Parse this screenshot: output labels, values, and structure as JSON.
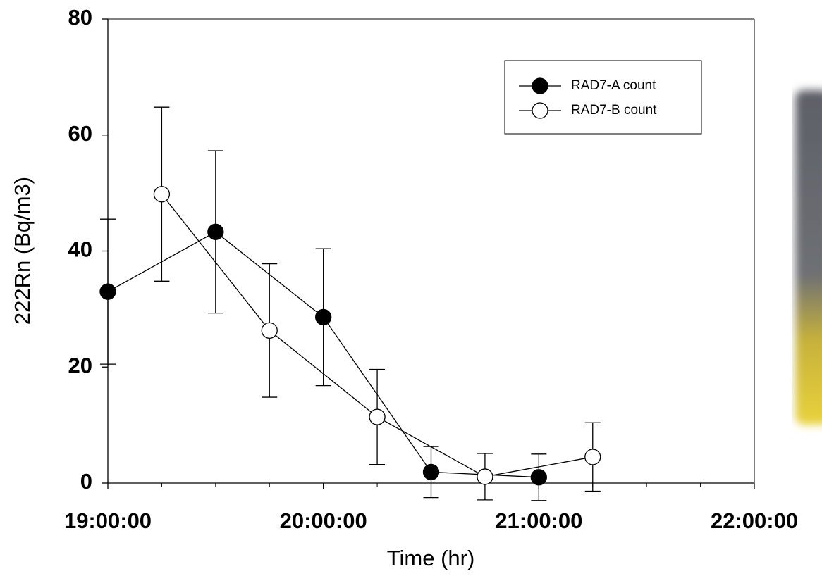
{
  "chart_data": {
    "type": "line",
    "x_label": "Time (hr)",
    "y_label": "222Rn (Bq/m3)",
    "xlim": [
      "19:00:00",
      "22:00:00"
    ],
    "xticks": [
      "19:00:00",
      "20:00:00",
      "21:00:00",
      "22:00:00"
    ],
    "ylim": [
      0,
      80
    ],
    "yticks": [
      0,
      20,
      40,
      60,
      80
    ],
    "legend_position": "upper right",
    "series": [
      {
        "name": "RAD7-A count",
        "color": "#000000",
        "marker_fill": "#000000",
        "x": [
          "19:00:00",
          "19:30:00",
          "20:00:00",
          "20:30:00",
          "21:00:00"
        ],
        "values": [
          33.0,
          43.3,
          28.6,
          1.9,
          1.0
        ],
        "errors": [
          12.5,
          14.0,
          11.8,
          4.4,
          4.0
        ]
      },
      {
        "name": "RAD7-B count",
        "color": "#000000",
        "marker_fill": "#ffffff",
        "x": [
          "19:15:00",
          "19:45:00",
          "20:15:00",
          "20:45:00",
          "21:15:00"
        ],
        "values": [
          49.8,
          26.3,
          11.4,
          1.1,
          4.5
        ],
        "errors": [
          15.0,
          11.5,
          8.2,
          4.0,
          5.9
        ]
      }
    ]
  }
}
